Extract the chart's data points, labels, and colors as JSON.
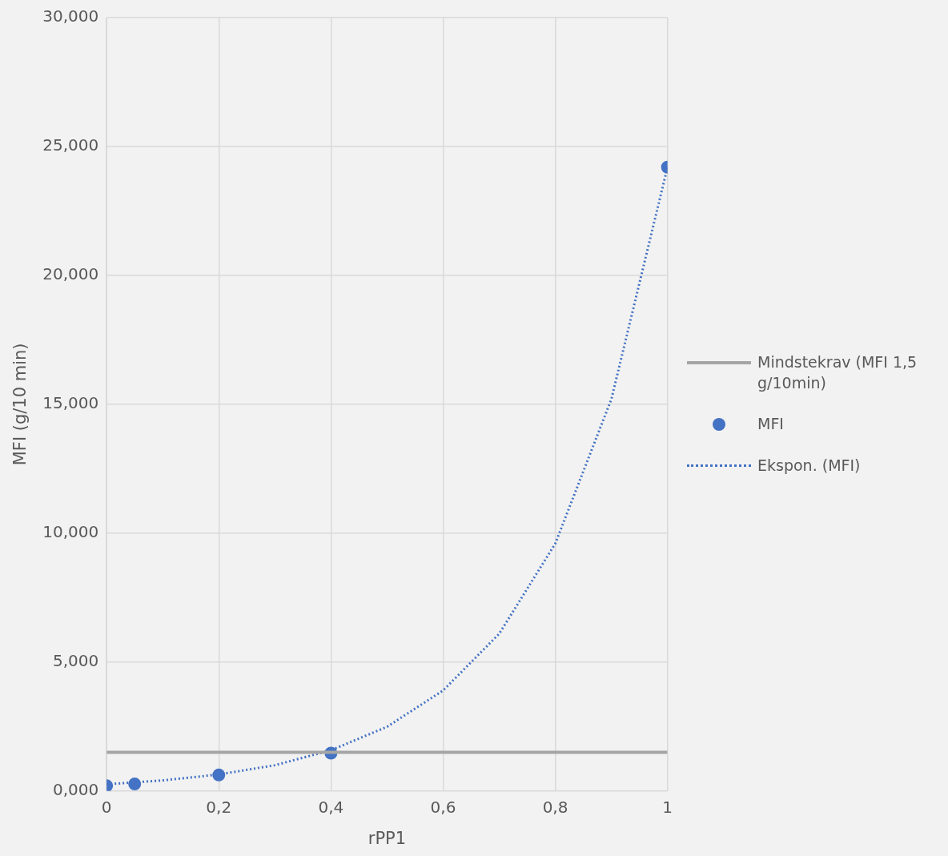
{
  "chart_data": {
    "type": "scatter",
    "xlabel": "rPP1",
    "ylabel": "MFI (g/10 min)",
    "xlim": [
      0,
      1
    ],
    "ylim": [
      0,
      30
    ],
    "xticks": [
      0,
      {
        "value": 0.2,
        "label": "0,2"
      },
      {
        "value": 0.4,
        "label": "0,4"
      },
      {
        "value": 0.6,
        "label": "0,6"
      },
      {
        "value": 0.8,
        "label": "0,8"
      },
      1
    ],
    "yticks": [
      {
        "value": 0,
        "label": "0,000"
      },
      {
        "value": 5,
        "label": "5,000"
      },
      {
        "value": 10,
        "label": "10,000"
      },
      {
        "value": 15,
        "label": "15,000"
      },
      {
        "value": 20,
        "label": "20,000"
      },
      {
        "value": 25,
        "label": "25,000"
      },
      {
        "value": 30,
        "label": "30,000"
      }
    ],
    "grid": true,
    "legend": "right",
    "series": [
      {
        "name": "Mindstekrav (MFI 1,5 g/10min)",
        "type": "line",
        "color": "#a5a5a5",
        "line_style": "solid",
        "marker": "none",
        "x": [
          0,
          1
        ],
        "values": [
          1.5,
          1.5
        ]
      },
      {
        "name": "MFI",
        "color": "#4472c4",
        "marker": "circle",
        "x": [
          0,
          0.05,
          0.2,
          0.4,
          1
        ],
        "values": [
          0.2,
          0.27,
          0.62,
          1.47,
          24.2
        ]
      },
      {
        "name": "Ekspon. (MFI)",
        "type": "line",
        "color": "#4472c4",
        "line_style": "dotted",
        "marker": "none",
        "x": [
          0,
          0.1,
          0.2,
          0.3,
          0.4,
          0.5,
          0.6,
          0.7,
          0.8,
          0.9,
          1
        ],
        "values": [
          0.26,
          0.41,
          0.64,
          1.0,
          1.58,
          2.49,
          3.9,
          6.1,
          9.6,
          15.2,
          24.2
        ]
      }
    ]
  }
}
